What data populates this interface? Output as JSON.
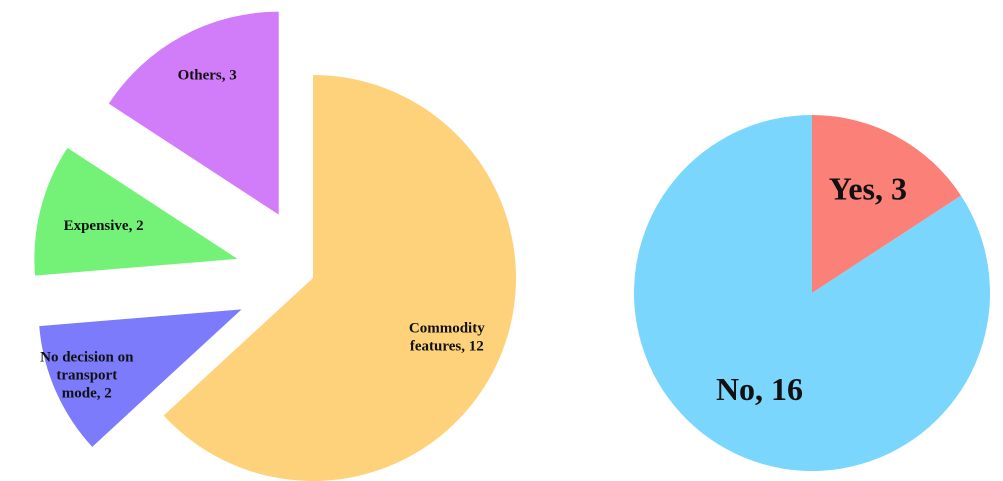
{
  "chart_data": [
    {
      "type": "pie",
      "title": "",
      "slices": [
        {
          "label": [
            "Commodity",
            "features, 12"
          ],
          "name": "Commodity features",
          "value": 12,
          "color": "#FDD27A"
        },
        {
          "label": [
            "No decision on",
            "transport",
            "mode, 2"
          ],
          "name": "No decision on transport mode",
          "value": 2,
          "color": "#7B7BFB"
        },
        {
          "label": [
            "Expensive, 2"
          ],
          "name": "Expensive",
          "value": 2,
          "color": "#73F277"
        },
        {
          "label": [
            "Others, 3"
          ],
          "name": "Others",
          "value": 3,
          "color": "#D17DFA"
        }
      ]
    },
    {
      "type": "pie",
      "title": "",
      "slices": [
        {
          "label": [
            "Yes, 3"
          ],
          "name": "Yes",
          "value": 3,
          "color": "#FA8078"
        },
        {
          "label": [
            "No, 16"
          ],
          "name": "No",
          "value": 16,
          "color": "#7AD6FD"
        }
      ]
    }
  ]
}
